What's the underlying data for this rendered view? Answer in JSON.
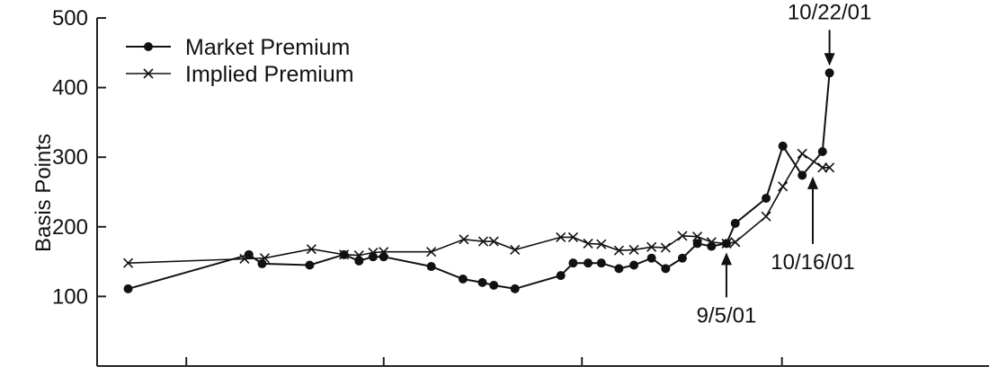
{
  "chart_data": {
    "type": "line",
    "ylabel": "Basis Points",
    "xlabel": "",
    "ylim": [
      0,
      500
    ],
    "xlim": [
      0,
      1000
    ],
    "yticks": [
      100,
      200,
      300,
      400,
      500
    ],
    "xticks": [
      89,
      313,
      538,
      765
    ],
    "grid": false,
    "legend_position": "top-left",
    "series": [
      {
        "name": "Market Premium",
        "marker": "dot",
        "color": "#111111",
        "points": [
          [
            23,
            111
          ],
          [
            160,
            160
          ],
          [
            175,
            147
          ],
          [
            229,
            145
          ],
          [
            268,
            160
          ],
          [
            285,
            151
          ],
          [
            301,
            157
          ],
          [
            313,
            157
          ],
          [
            367,
            143
          ],
          [
            403,
            125
          ],
          [
            425,
            120
          ],
          [
            438,
            116
          ],
          [
            462,
            111
          ],
          [
            514,
            130
          ],
          [
            528,
            148
          ],
          [
            545,
            148
          ],
          [
            560,
            148
          ],
          [
            580,
            140
          ],
          [
            597,
            145
          ],
          [
            617,
            155
          ],
          [
            633,
            140
          ],
          [
            652,
            155
          ],
          [
            669,
            176
          ],
          [
            685,
            172
          ],
          [
            702,
            176
          ],
          [
            712,
            205
          ],
          [
            747,
            241
          ],
          [
            766,
            316
          ],
          [
            788,
            274
          ],
          [
            811,
            308
          ],
          [
            819,
            421
          ]
        ]
      },
      {
        "name": "Implied Premium",
        "marker": "x",
        "color": "#111111",
        "points": [
          [
            23,
            148
          ],
          [
            155,
            154
          ],
          [
            178,
            155
          ],
          [
            231,
            168
          ],
          [
            268,
            160
          ],
          [
            285,
            159
          ],
          [
            301,
            163
          ],
          [
            313,
            164
          ],
          [
            367,
            164
          ],
          [
            404,
            182
          ],
          [
            426,
            179
          ],
          [
            438,
            179
          ],
          [
            462,
            167
          ],
          [
            514,
            185
          ],
          [
            528,
            185
          ],
          [
            545,
            176
          ],
          [
            560,
            175
          ],
          [
            580,
            166
          ],
          [
            597,
            167
          ],
          [
            617,
            171
          ],
          [
            633,
            170
          ],
          [
            652,
            187
          ],
          [
            669,
            186
          ],
          [
            685,
            178
          ],
          [
            702,
            176
          ],
          [
            712,
            178
          ],
          [
            747,
            215
          ],
          [
            766,
            258
          ],
          [
            788,
            305
          ],
          [
            811,
            285
          ],
          [
            819,
            285
          ]
        ]
      }
    ],
    "annotations": [
      {
        "text": "10/22/01",
        "x": 819,
        "y": 421,
        "arrow": "down"
      },
      {
        "text": "10/16/01",
        "x": 800,
        "y": 285,
        "arrow": "up"
      },
      {
        "text": "9/5/01",
        "x": 702,
        "y": 176,
        "arrow": "up"
      }
    ]
  }
}
